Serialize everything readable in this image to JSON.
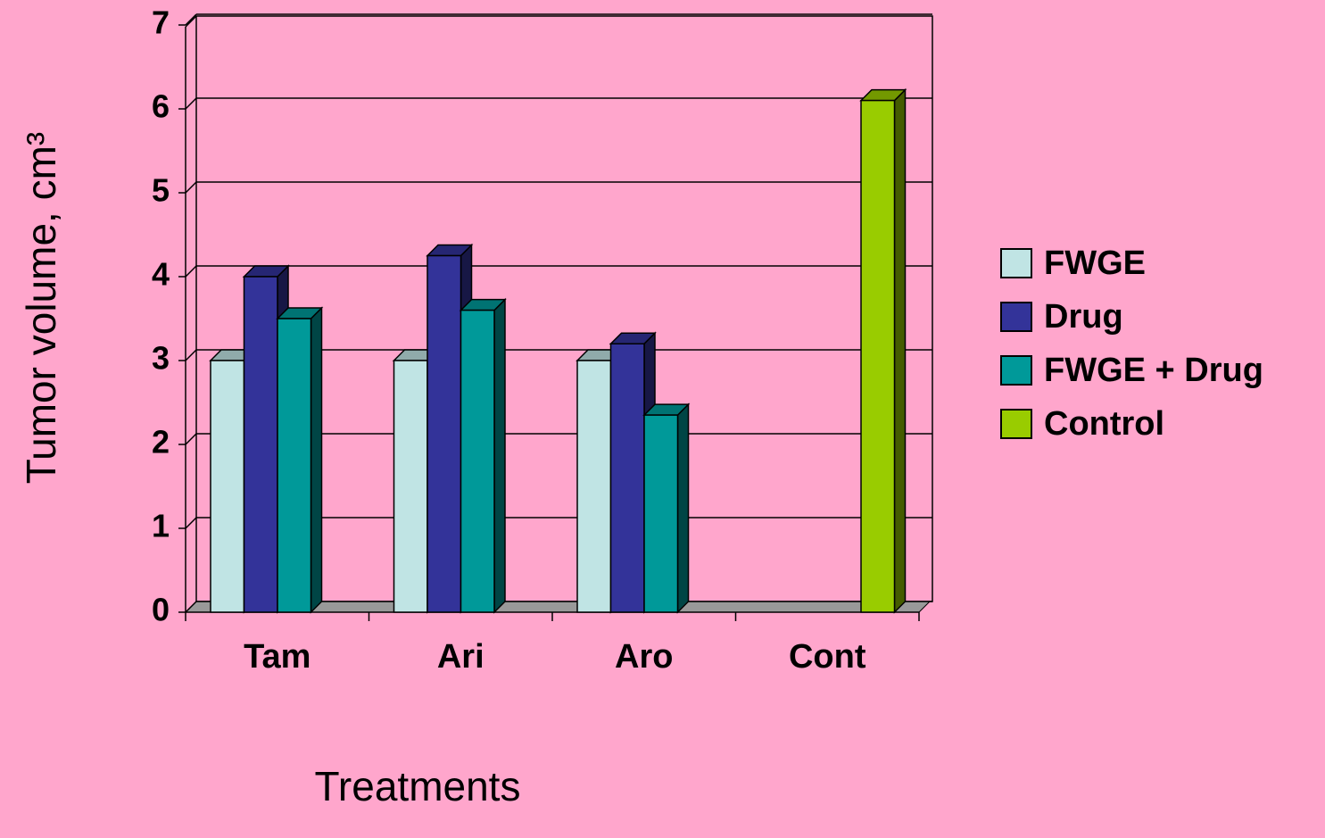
{
  "chart_data": {
    "type": "bar3d",
    "y_label": "Tumor volume, cm³",
    "x_label": "Treatments",
    "categories": [
      "Tam",
      "Ari",
      "Aro",
      "Cont"
    ],
    "series": [
      {
        "name": "FWGE",
        "color": "#c0e4e4",
        "values": [
          3,
          3,
          3,
          null
        ]
      },
      {
        "name": "Drug",
        "color": "#333399",
        "values": [
          4,
          4.25,
          3.2,
          null
        ]
      },
      {
        "name": "FWGE + Drug",
        "color": "#009999",
        "values": [
          3.5,
          3.6,
          2.35,
          null
        ]
      },
      {
        "name": "Control",
        "color": "#99cc00",
        "values": [
          null,
          null,
          null,
          6.1
        ]
      }
    ],
    "ylim": [
      0,
      7
    ],
    "yticks": [
      0,
      1,
      2,
      3,
      4,
      5,
      6,
      7
    ],
    "grid": true,
    "legend": "right"
  }
}
